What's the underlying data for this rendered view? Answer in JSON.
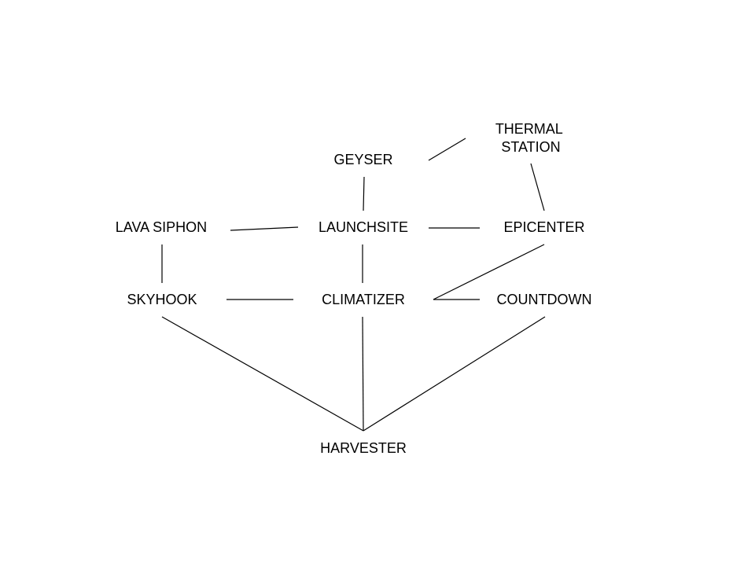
{
  "colors": {
    "background": "#ffffff",
    "line": "#000000",
    "text": "#000000"
  },
  "nodes": {
    "thermal_station": [
      "THERMAL",
      "STATION"
    ],
    "geyser": "GEYSER",
    "lava_siphon": "LAVA SIPHON",
    "launchsite": "LAUNCHSITE",
    "epicenter": "EPICENTER",
    "skyhook": "SKYHOOK",
    "climatizer": "CLIMATIZER",
    "countdown": "COUNTDOWN",
    "harvester": "HARVESTER"
  },
  "edges": [
    [
      "geyser",
      "thermal_station"
    ],
    [
      "geyser",
      "launchsite"
    ],
    [
      "thermal_station",
      "epicenter"
    ],
    [
      "lava_siphon",
      "launchsite"
    ],
    [
      "launchsite",
      "epicenter"
    ],
    [
      "lava_siphon",
      "skyhook"
    ],
    [
      "launchsite",
      "climatizer"
    ],
    [
      "epicenter",
      "climatizer"
    ],
    [
      "skyhook",
      "climatizer"
    ],
    [
      "climatizer",
      "countdown"
    ],
    [
      "skyhook",
      "harvester"
    ],
    [
      "climatizer",
      "harvester"
    ],
    [
      "countdown",
      "harvester"
    ]
  ]
}
